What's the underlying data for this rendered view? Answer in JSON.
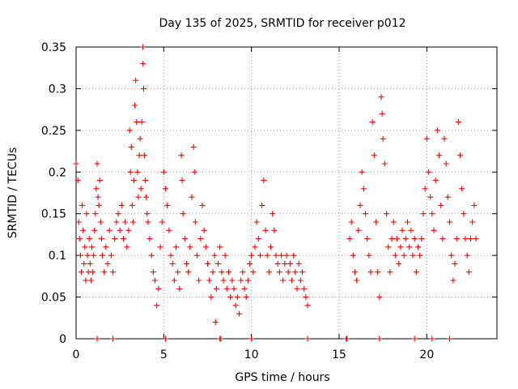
{
  "chart_data": {
    "type": "scatter",
    "title": "Day 135 of 2025, SRMTID for receiver p012",
    "xlabel": "GPS time / hours",
    "ylabel": "SRMTID / TECUs",
    "xlim": [
      0,
      24
    ],
    "ylim": [
      0,
      0.35
    ],
    "xticks": [
      0,
      5,
      10,
      15,
      20
    ],
    "xtick_labels": [
      "0",
      "5",
      "10",
      "15",
      "20"
    ],
    "yticks": [
      0,
      0.05,
      0.1,
      0.15,
      0.2,
      0.25,
      0.3,
      0.35
    ],
    "ytick_labels": [
      "0",
      "0.05",
      "0.1",
      "0.15",
      "0.2",
      "0.25",
      "0.3",
      "0.35"
    ],
    "grid": true,
    "marker": "+",
    "series_color": "#ff0000",
    "series": [
      {
        "name": "SRMTID",
        "points": [
          [
            0.0,
            0.21
          ],
          [
            0.1,
            0.19
          ],
          [
            0.15,
            0.14
          ],
          [
            0.2,
            0.12
          ],
          [
            0.25,
            0.1
          ],
          [
            0.3,
            0.08
          ],
          [
            0.35,
            0.16
          ],
          [
            0.4,
            0.13
          ],
          [
            0.45,
            0.09
          ],
          [
            0.5,
            0.11
          ],
          [
            0.55,
            0.07
          ],
          [
            0.6,
            0.15
          ],
          [
            0.65,
            0.1
          ],
          [
            0.7,
            0.08
          ],
          [
            0.75,
            0.12
          ],
          [
            0.8,
            0.09
          ],
          [
            0.85,
            0.07
          ],
          [
            0.9,
            0.11
          ],
          [
            0.95,
            0.08
          ],
          [
            1.0,
            0.1
          ],
          [
            1.05,
            0.13
          ],
          [
            1.1,
            0.15
          ],
          [
            1.15,
            0.18
          ],
          [
            1.2,
            0.21
          ],
          [
            1.25,
            0.17
          ],
          [
            1.3,
            0.16
          ],
          [
            1.35,
            0.19
          ],
          [
            1.4,
            0.14
          ],
          [
            1.45,
            0.12
          ],
          [
            1.5,
            0.1
          ],
          [
            1.6,
            0.08
          ],
          [
            1.7,
            0.11
          ],
          [
            1.8,
            0.09
          ],
          [
            1.9,
            0.13
          ],
          [
            2.0,
            0.1
          ],
          [
            2.1,
            0.08
          ],
          [
            2.2,
            0.12
          ],
          [
            2.3,
            0.14
          ],
          [
            2.4,
            0.15
          ],
          [
            2.5,
            0.13
          ],
          [
            2.6,
            0.16
          ],
          [
            2.7,
            0.12
          ],
          [
            2.8,
            0.14
          ],
          [
            2.9,
            0.11
          ],
          [
            3.0,
            0.13
          ],
          [
            3.05,
            0.25
          ],
          [
            3.1,
            0.2
          ],
          [
            3.15,
            0.23
          ],
          [
            3.2,
            0.16
          ],
          [
            3.25,
            0.14
          ],
          [
            3.3,
            0.19
          ],
          [
            3.35,
            0.28
          ],
          [
            3.4,
            0.31
          ],
          [
            3.45,
            0.26
          ],
          [
            3.5,
            0.2
          ],
          [
            3.55,
            0.17
          ],
          [
            3.6,
            0.22
          ],
          [
            3.65,
            0.24
          ],
          [
            3.7,
            0.18
          ],
          [
            3.75,
            0.26
          ],
          [
            3.8,
            0.35
          ],
          [
            3.82,
            0.33
          ],
          [
            3.85,
            0.3
          ],
          [
            3.9,
            0.22
          ],
          [
            3.95,
            0.19
          ],
          [
            4.0,
            0.17
          ],
          [
            4.05,
            0.15
          ],
          [
            4.1,
            0.14
          ],
          [
            4.2,
            0.12
          ],
          [
            4.3,
            0.1
          ],
          [
            4.4,
            0.08
          ],
          [
            4.5,
            0.07
          ],
          [
            4.6,
            0.04
          ],
          [
            4.7,
            0.06
          ],
          [
            4.8,
            0.11
          ],
          [
            4.9,
            0.14
          ],
          [
            5.0,
            0.2
          ],
          [
            5.1,
            0.18
          ],
          [
            5.2,
            0.16
          ],
          [
            5.3,
            0.13
          ],
          [
            5.4,
            0.1
          ],
          [
            5.5,
            0.09
          ],
          [
            5.6,
            0.07
          ],
          [
            5.7,
            0.11
          ],
          [
            5.8,
            0.08
          ],
          [
            5.9,
            0.06
          ],
          [
            6.0,
            0.22
          ],
          [
            6.05,
            0.19
          ],
          [
            6.1,
            0.15
          ],
          [
            6.2,
            0.12
          ],
          [
            6.3,
            0.09
          ],
          [
            6.4,
            0.08
          ],
          [
            6.5,
            0.11
          ],
          [
            6.6,
            0.17
          ],
          [
            6.7,
            0.23
          ],
          [
            6.75,
            0.2
          ],
          [
            6.8,
            0.14
          ],
          [
            6.9,
            0.1
          ],
          [
            7.0,
            0.07
          ],
          [
            7.1,
            0.12
          ],
          [
            7.2,
            0.16
          ],
          [
            7.3,
            0.13
          ],
          [
            7.4,
            0.11
          ],
          [
            7.5,
            0.09
          ],
          [
            7.6,
            0.07
          ],
          [
            7.7,
            0.05
          ],
          [
            7.8,
            0.08
          ],
          [
            7.9,
            0.1
          ],
          [
            7.95,
            0.02
          ],
          [
            8.0,
            0.06
          ],
          [
            8.1,
            0.09
          ],
          [
            8.2,
            0.11
          ],
          [
            8.3,
            0.08
          ],
          [
            8.4,
            0.07
          ],
          [
            8.5,
            0.1
          ],
          [
            8.6,
            0.06
          ],
          [
            8.7,
            0.08
          ],
          [
            8.8,
            0.05
          ],
          [
            8.9,
            0.07
          ],
          [
            9.0,
            0.06
          ],
          [
            9.1,
            0.04
          ],
          [
            9.2,
            0.05
          ],
          [
            9.3,
            0.03
          ],
          [
            9.4,
            0.07
          ],
          [
            9.5,
            0.08
          ],
          [
            9.6,
            0.06
          ],
          [
            9.7,
            0.05
          ],
          [
            9.8,
            0.07
          ],
          [
            9.9,
            0.09
          ],
          [
            10.0,
            0.1
          ],
          [
            10.1,
            0.08
          ],
          [
            10.2,
            0.11
          ],
          [
            10.3,
            0.14
          ],
          [
            10.4,
            0.12
          ],
          [
            10.5,
            0.1
          ],
          [
            10.6,
            0.16
          ],
          [
            10.7,
            0.19
          ],
          [
            10.8,
            0.13
          ],
          [
            10.9,
            0.1
          ],
          [
            11.0,
            0.08
          ],
          [
            11.1,
            0.11
          ],
          [
            11.2,
            0.15
          ],
          [
            11.3,
            0.13
          ],
          [
            11.4,
            0.1
          ],
          [
            11.5,
            0.09
          ],
          [
            11.6,
            0.08
          ],
          [
            11.7,
            0.1
          ],
          [
            11.8,
            0.07
          ],
          [
            11.9,
            0.09
          ],
          [
            12.0,
            0.1
          ],
          [
            12.1,
            0.08
          ],
          [
            12.2,
            0.09
          ],
          [
            12.3,
            0.07
          ],
          [
            12.4,
            0.1
          ],
          [
            12.5,
            0.08
          ],
          [
            12.6,
            0.06
          ],
          [
            12.7,
            0.09
          ],
          [
            12.8,
            0.07
          ],
          [
            12.9,
            0.08
          ],
          [
            13.0,
            0.06
          ],
          [
            13.1,
            0.05
          ],
          [
            13.2,
            0.04
          ],
          [
            15.6,
            0.12
          ],
          [
            15.7,
            0.14
          ],
          [
            15.8,
            0.1
          ],
          [
            15.9,
            0.08
          ],
          [
            16.0,
            0.07
          ],
          [
            16.1,
            0.13
          ],
          [
            16.2,
            0.16
          ],
          [
            16.3,
            0.2
          ],
          [
            16.4,
            0.18
          ],
          [
            16.5,
            0.15
          ],
          [
            16.6,
            0.12
          ],
          [
            16.7,
            0.1
          ],
          [
            16.8,
            0.08
          ],
          [
            16.9,
            0.26
          ],
          [
            17.0,
            0.22
          ],
          [
            17.1,
            0.14
          ],
          [
            17.2,
            0.08
          ],
          [
            17.3,
            0.05
          ],
          [
            17.4,
            0.29
          ],
          [
            17.45,
            0.27
          ],
          [
            17.5,
            0.24
          ],
          [
            17.6,
            0.21
          ],
          [
            17.7,
            0.15
          ],
          [
            17.8,
            0.11
          ],
          [
            17.9,
            0.08
          ],
          [
            18.0,
            0.12
          ],
          [
            18.1,
            0.14
          ],
          [
            18.2,
            0.1
          ],
          [
            18.3,
            0.12
          ],
          [
            18.4,
            0.09
          ],
          [
            18.5,
            0.11
          ],
          [
            18.6,
            0.13
          ],
          [
            18.7,
            0.1
          ],
          [
            18.8,
            0.12
          ],
          [
            18.9,
            0.14
          ],
          [
            19.0,
            0.11
          ],
          [
            19.1,
            0.13
          ],
          [
            19.2,
            0.1
          ],
          [
            19.3,
            0.12
          ],
          [
            19.4,
            0.08
          ],
          [
            19.5,
            0.11
          ],
          [
            19.6,
            0.1
          ],
          [
            19.7,
            0.12
          ],
          [
            19.8,
            0.15
          ],
          [
            19.9,
            0.18
          ],
          [
            20.0,
            0.24
          ],
          [
            20.1,
            0.2
          ],
          [
            20.2,
            0.17
          ],
          [
            20.3,
            0.15
          ],
          [
            20.4,
            0.13
          ],
          [
            20.5,
            0.19
          ],
          [
            20.6,
            0.25
          ],
          [
            20.7,
            0.22
          ],
          [
            20.8,
            0.16
          ],
          [
            20.9,
            0.12
          ],
          [
            21.0,
            0.24
          ],
          [
            21.1,
            0.21
          ],
          [
            21.2,
            0.17
          ],
          [
            21.3,
            0.14
          ],
          [
            21.4,
            0.1
          ],
          [
            21.5,
            0.07
          ],
          [
            21.6,
            0.09
          ],
          [
            21.7,
            0.12
          ],
          [
            21.8,
            0.26
          ],
          [
            21.9,
            0.22
          ],
          [
            22.0,
            0.18
          ],
          [
            22.1,
            0.15
          ],
          [
            22.2,
            0.12
          ],
          [
            22.3,
            0.1
          ],
          [
            22.4,
            0.08
          ],
          [
            22.5,
            0.12
          ],
          [
            22.6,
            0.14
          ],
          [
            22.7,
            0.16
          ],
          [
            22.8,
            0.12
          ]
        ]
      }
    ],
    "zero_points_x": [
      1.2,
      2.1,
      5.1,
      8.2,
      8.25,
      10.0,
      13.2,
      15.4,
      15.45,
      17.3,
      19.3,
      20.3,
      21.3
    ]
  }
}
